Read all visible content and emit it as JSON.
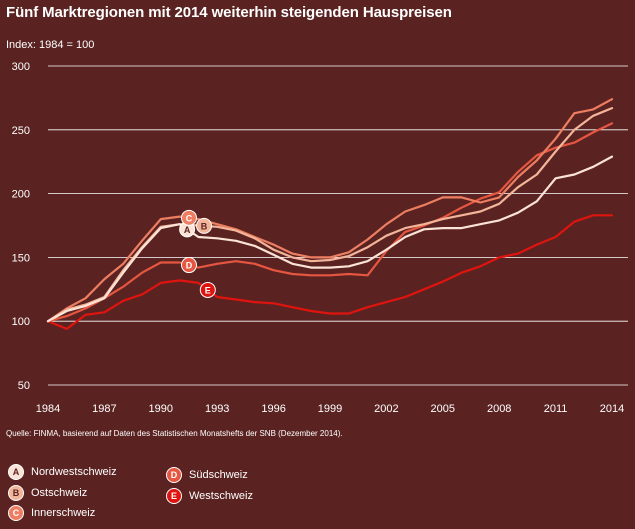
{
  "chart_data": {
    "type": "line",
    "title": "Fünf Marktregionen mit 2014 weiterhin steigenden Hauspreisen",
    "ylabel": "Index: 1984 = 100",
    "source": "Quelle: FINMA, basierend auf Daten des Statistischen Monatshefts der SNB (Dezember 2014).",
    "xlim": [
      1984,
      2014
    ],
    "ylim": [
      50,
      300
    ],
    "xticks": [
      "1984",
      "1987",
      "1990",
      "1993",
      "1996",
      "1999",
      "2002",
      "2005",
      "2008",
      "2011",
      "2014"
    ],
    "yticks": [
      "50",
      "100",
      "150",
      "200",
      "250",
      "300"
    ],
    "x": [
      1984,
      1985,
      1986,
      1987,
      1988,
      1989,
      1990,
      1991,
      1992,
      1993,
      1994,
      1995,
      1996,
      1997,
      1998,
      1999,
      2000,
      2001,
      2002,
      2003,
      2004,
      2005,
      2006,
      2007,
      2008,
      2009,
      2010,
      2011,
      2012,
      2013,
      2014
    ],
    "series": [
      {
        "key": "A",
        "name": "Nordwestschweiz",
        "color": "#fbe3d6",
        "label_year": 1991.4,
        "values": [
          100,
          108,
          112,
          118,
          138,
          157,
          173,
          176,
          166,
          165,
          163,
          159,
          152,
          145,
          142,
          142,
          143,
          147,
          156,
          166,
          172,
          173,
          173,
          176,
          179,
          185,
          194,
          212,
          215,
          221,
          229
        ]
      },
      {
        "key": "B",
        "name": "Ostschweiz",
        "color": "#f3b59a",
        "label_year": 1992.3,
        "values": [
          100,
          109,
          113,
          119,
          140,
          158,
          174,
          176,
          175,
          174,
          171,
          165,
          156,
          150,
          147,
          148,
          151,
          158,
          167,
          173,
          176,
          180,
          183,
          186,
          192,
          205,
          215,
          233,
          250,
          261,
          267
        ]
      },
      {
        "key": "C",
        "name": "Innerschweiz",
        "color": "#ee7e62",
        "label_year": 1991.5,
        "values": [
          100,
          110,
          118,
          133,
          145,
          163,
          180,
          182,
          180,
          176,
          172,
          166,
          160,
          153,
          150,
          150,
          154,
          164,
          176,
          186,
          191,
          197,
          197,
          193,
          197,
          213,
          226,
          243,
          263,
          266,
          274
        ]
      },
      {
        "key": "D",
        "name": "Südschweiz",
        "color": "#e65640",
        "label_year": 1991.5,
        "values": [
          100,
          104,
          110,
          118,
          127,
          138,
          146,
          146,
          142,
          145,
          147,
          145,
          140,
          137,
          136,
          136,
          137,
          136,
          155,
          170,
          175,
          181,
          189,
          196,
          201,
          217,
          230,
          236,
          240,
          248,
          255
        ]
      },
      {
        "key": "E",
        "name": "Westschweiz",
        "color": "#e0140f",
        "label_year": 1992.5,
        "values": [
          100,
          94,
          105,
          107,
          116,
          121,
          130,
          132,
          130,
          119,
          117,
          115,
          114,
          111,
          108,
          106,
          106,
          111,
          115,
          119,
          125,
          131,
          138,
          143,
          150,
          153,
          160,
          166,
          178,
          183,
          183
        ]
      }
    ]
  }
}
